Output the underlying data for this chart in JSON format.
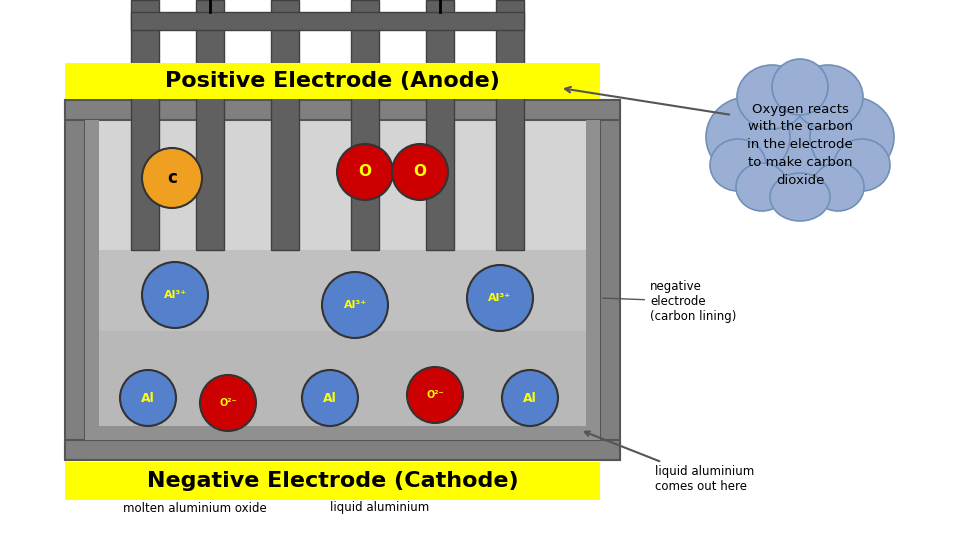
{
  "bg_color": "#ffffff",
  "positive_label": "Positive Electrode (Anode)",
  "negative_label": "Negative Electrode (Cathode)",
  "cloud_text": "Oxygen reacts\nwith the carbon\nin the electrode\nto make carbon\ndioxide",
  "cloud_color": "#9bafd4",
  "cloud_edge_color": "#7090b8",
  "yellow_color": "#ffff00",
  "outer_box_color": "#808080",
  "outer_box_edge": "#555555",
  "inner_box_color": "#c0c0c0",
  "inner_top_color": "#d4d4d4",
  "liquid_al_color": "#b8b8b8",
  "carbon_rod_color": "#606060",
  "carbon_rod_edge": "#404040",
  "wire_color": "#000000",
  "note_neg_elec": "negative\nelectrode\n(carbon lining)",
  "note_liq_al": "liquid aluminium\ncomes out here",
  "note_mol_al": "molten aluminium oxide",
  "note_liq_al2": "liquid aluminium",
  "c_ball_color": "#f0a020",
  "o_ball_color": "#cc0000",
  "al3_ball_color": "#5580cc",
  "al_ball_color": "#5580cc",
  "ball_edge": "#333333",
  "ball_label_color": "#ffff00",
  "c_label_color": "#000000",
  "arrow_color": "#555555"
}
